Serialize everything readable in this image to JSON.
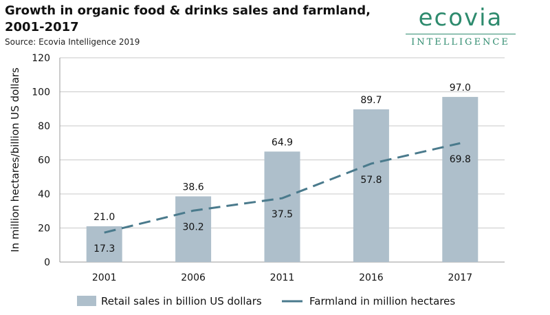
{
  "header": {
    "title": "Growth in organic food & drinks sales and farmland, 2001-2017",
    "source": "Source: Ecovia Intelligence 2019"
  },
  "logo": {
    "word": "ecovia",
    "sub": "INTELLIGENCE",
    "color": "#2e8b6e"
  },
  "chart_data": {
    "type": "bar",
    "categories": [
      "2001",
      "2006",
      "2011",
      "2016",
      "2017"
    ],
    "series": [
      {
        "name": "Retail sales in billion US dollars",
        "type": "bar",
        "values": [
          21.0,
          38.6,
          64.9,
          89.7,
          97.0
        ],
        "labels": [
          "21.0",
          "38.6",
          "64.9",
          "89.7",
          "97.0"
        ],
        "color": "#aebfcb"
      },
      {
        "name": "Farmland in million hectares",
        "type": "line",
        "style": "dashed",
        "values": [
          17.3,
          30.2,
          37.5,
          57.8,
          69.8
        ],
        "labels": [
          "17.3",
          "30.2",
          "37.5",
          "57.8",
          "69.8"
        ],
        "color": "#4a7a8c"
      }
    ],
    "title": "Growth in organic food & drinks sales and farmland, 2001-2017",
    "xlabel": "",
    "ylabel": "In million hectares/billion US dollars",
    "ylim": [
      0,
      120
    ],
    "yticks": [
      "0",
      "20",
      "40",
      "60",
      "80",
      "100",
      "120"
    ],
    "grid": true,
    "legend_position": "bottom"
  }
}
